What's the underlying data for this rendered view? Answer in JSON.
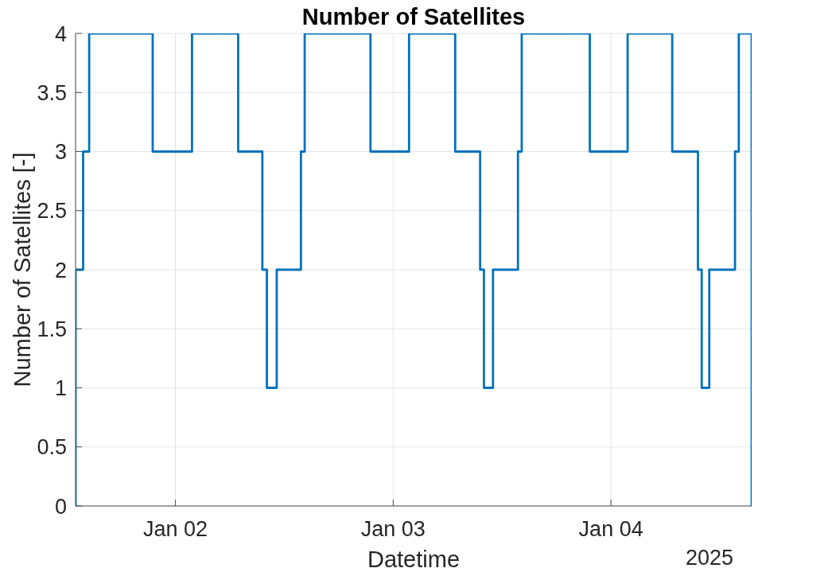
{
  "chart_data": {
    "type": "step",
    "title": "Number of Satellites",
    "xlabel": "Datetime",
    "ylabel": "Number of Satellites [-]",
    "annotations": [
      "2025"
    ],
    "x": [
      "2025-01-01T13:00",
      "2025-01-01T13:00",
      "2025-01-01T13:50",
      "2025-01-01T14:30",
      "2025-01-01T21:30",
      "2025-01-02T01:50",
      "2025-01-02T06:55",
      "2025-01-02T09:35",
      "2025-01-02T10:05",
      "2025-01-02T11:10",
      "2025-01-02T13:50",
      "2025-01-02T14:15",
      "2025-01-02T21:30",
      "2025-01-03T01:45",
      "2025-01-03T06:50",
      "2025-01-03T09:35",
      "2025-01-03T10:00",
      "2025-01-03T11:00",
      "2025-01-03T13:45",
      "2025-01-03T14:10",
      "2025-01-03T21:40",
      "2025-01-04T01:50",
      "2025-01-04T06:45",
      "2025-01-04T09:35",
      "2025-01-04T10:00",
      "2025-01-04T10:50",
      "2025-01-04T13:40",
      "2025-01-04T14:05",
      "2025-01-04T15:30"
    ],
    "values": [
      0,
      2,
      3,
      4,
      3,
      4,
      3,
      2,
      1,
      2,
      3,
      4,
      3,
      4,
      3,
      2,
      1,
      2,
      3,
      4,
      3,
      4,
      3,
      2,
      1,
      2,
      3,
      4,
      0
    ],
    "color": "#0072bd",
    "line_style": "solid",
    "xlim": [
      "2025-01-01T13:00",
      "2025-01-04T15:30"
    ],
    "xticks": [
      {
        "value": "2025-01-02",
        "label": "Jan 02"
      },
      {
        "value": "2025-01-03",
        "label": "Jan 03"
      },
      {
        "value": "2025-01-04",
        "label": "Jan 04"
      }
    ],
    "ylim": [
      0,
      4
    ],
    "yticks": [
      0,
      0.5,
      1,
      1.5,
      2,
      2.5,
      3,
      3.5,
      4
    ],
    "grid": true
  }
}
